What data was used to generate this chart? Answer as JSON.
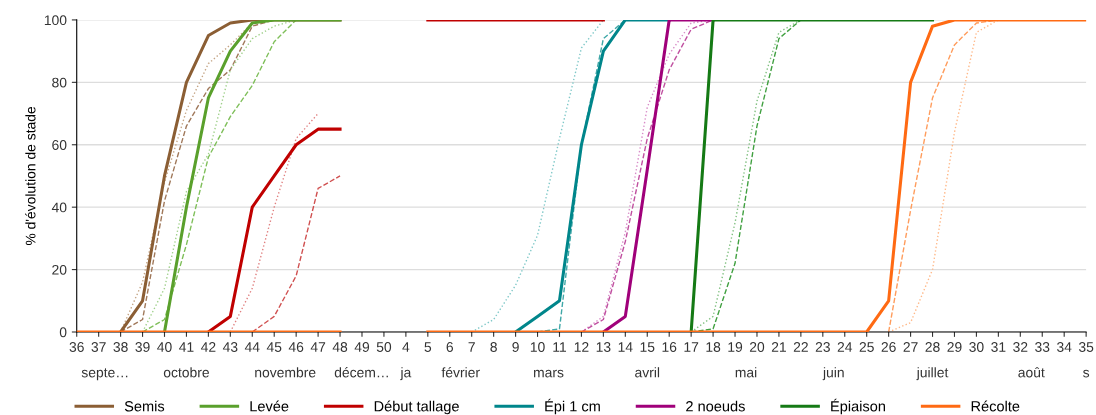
{
  "chart_data": {
    "type": "line",
    "ylabel": "% d'évolution de stade",
    "categories": [
      "36",
      "37",
      "38",
      "39",
      "40",
      "41",
      "42",
      "43",
      "44",
      "45",
      "46",
      "47",
      "48",
      "49",
      "50",
      "4",
      "5",
      "6",
      "7",
      "8",
      "9",
      "10",
      "11",
      "12",
      "13",
      "14",
      "15",
      "16",
      "17",
      "18",
      "19",
      "20",
      "21",
      "22",
      "23",
      "24",
      "25",
      "26",
      "27",
      "28",
      "29",
      "30",
      "31",
      "32",
      "33",
      "34",
      "35"
    ],
    "ylim": [
      0,
      100
    ],
    "yticks": [
      0,
      20,
      40,
      60,
      80,
      100
    ],
    "grid": "y",
    "legend": "bottom",
    "marker": "none",
    "annotations": [
      "septe…",
      "octobre",
      "novembre",
      "décem…",
      "ja",
      "février",
      "mars",
      "avril",
      "mai",
      "juin",
      "juillet",
      "août",
      "s"
    ],
    "series": [
      {
        "color": "#c4a484",
        "line_style": "dotted",
        "values": [
          null,
          null,
          0,
          16,
          48,
          71,
          86,
          92,
          99,
          100,
          null,
          null,
          null,
          null,
          null,
          null,
          null,
          null,
          null,
          null,
          null,
          null,
          null,
          null,
          null,
          null,
          null,
          null,
          null,
          null,
          null,
          null,
          null,
          null,
          null,
          null,
          null,
          null,
          null,
          null,
          null,
          null,
          null,
          null,
          null,
          null,
          null
        ]
      },
      {
        "color": "#a0785a",
        "line_style": "dashed",
        "values": [
          null,
          null,
          0,
          4,
          42,
          66,
          78,
          84,
          98,
          100,
          null,
          null,
          null,
          null,
          null,
          null,
          null,
          null,
          null,
          null,
          null,
          null,
          null,
          null,
          null,
          null,
          null,
          null,
          null,
          null,
          null,
          null,
          null,
          null,
          null,
          null,
          null,
          null,
          null,
          null,
          null,
          null,
          null,
          null,
          null,
          null,
          null
        ]
      },
      {
        "color": "#9fd08a",
        "line_style": "dotted",
        "values": [
          null,
          null,
          null,
          0,
          14,
          45,
          57,
          84,
          94,
          98,
          100,
          null,
          null,
          null,
          null,
          null,
          null,
          null,
          null,
          null,
          null,
          null,
          null,
          null,
          null,
          null,
          null,
          null,
          null,
          null,
          null,
          null,
          null,
          null,
          null,
          null,
          null,
          null,
          null,
          null,
          null,
          null,
          null,
          null,
          null,
          null,
          null
        ]
      },
      {
        "color": "#7fbf5a",
        "line_style": "dashed",
        "values": [
          null,
          null,
          null,
          0,
          4,
          28,
          56,
          69,
          79,
          93,
          100,
          null,
          null,
          null,
          null,
          null,
          null,
          null,
          null,
          null,
          null,
          null,
          null,
          null,
          null,
          null,
          null,
          null,
          null,
          null,
          null,
          null,
          null,
          null,
          null,
          null,
          null,
          null,
          null,
          null,
          null,
          null,
          null,
          null,
          null,
          null,
          null
        ]
      },
      {
        "color": "#e08080",
        "line_style": "dotted",
        "values": [
          null,
          null,
          null,
          null,
          null,
          null,
          null,
          0,
          14,
          40,
          62,
          70,
          null,
          null,
          null,
          null,
          null,
          null,
          null,
          null,
          null,
          null,
          null,
          null,
          null,
          null,
          null,
          null,
          null,
          null,
          null,
          null,
          null,
          null,
          null,
          null,
          null,
          null,
          null,
          null,
          null,
          null,
          null,
          null,
          null,
          null,
          null
        ]
      },
      {
        "color": "#d05050",
        "line_style": "dashed",
        "values": [
          null,
          null,
          null,
          null,
          null,
          null,
          null,
          null,
          0,
          5,
          18,
          46,
          50,
          null,
          null,
          null,
          null,
          null,
          null,
          null,
          null,
          null,
          null,
          null,
          null,
          null,
          null,
          null,
          null,
          null,
          null,
          null,
          null,
          null,
          null,
          null,
          null,
          null,
          null,
          null,
          null,
          null,
          null,
          null,
          null,
          null,
          null
        ]
      },
      {
        "color": "#7fc8c8",
        "line_style": "dotted",
        "values": [
          null,
          null,
          null,
          null,
          null,
          null,
          null,
          null,
          null,
          null,
          null,
          null,
          null,
          null,
          null,
          null,
          null,
          null,
          0,
          4,
          15,
          31,
          62,
          91,
          100,
          null,
          null,
          null,
          null,
          null,
          null,
          null,
          null,
          null,
          null,
          null,
          null,
          null,
          null,
          null,
          null,
          null,
          null,
          null,
          null,
          null,
          null
        ]
      },
      {
        "color": "#40a8a8",
        "line_style": "dashed",
        "values": [
          null,
          null,
          null,
          null,
          null,
          null,
          null,
          null,
          null,
          null,
          null,
          null,
          null,
          null,
          null,
          null,
          null,
          null,
          null,
          null,
          null,
          0,
          1,
          60,
          94,
          100,
          null,
          null,
          null,
          null,
          null,
          null,
          null,
          null,
          null,
          null,
          null,
          null,
          null,
          null,
          null,
          null,
          null,
          null,
          null,
          null,
          null
        ]
      },
      {
        "color": "#d88cc8",
        "line_style": "dotted",
        "values": [
          null,
          null,
          null,
          null,
          null,
          null,
          null,
          null,
          null,
          null,
          null,
          null,
          null,
          null,
          null,
          null,
          null,
          null,
          null,
          null,
          null,
          null,
          null,
          0,
          5,
          32,
          72,
          89,
          99,
          100,
          null,
          null,
          null,
          null,
          null,
          null,
          null,
          null,
          null,
          null,
          null,
          null,
          null,
          null,
          null,
          null,
          null
        ]
      },
      {
        "color": "#c050a0",
        "line_style": "dashed",
        "values": [
          null,
          null,
          null,
          null,
          null,
          null,
          null,
          null,
          null,
          null,
          null,
          null,
          null,
          null,
          null,
          null,
          null,
          null,
          null,
          null,
          null,
          null,
          null,
          0,
          4,
          29,
          62,
          84,
          97,
          100,
          null,
          null,
          null,
          null,
          null,
          null,
          null,
          null,
          null,
          null,
          null,
          null,
          null,
          null,
          null,
          null,
          null
        ]
      },
      {
        "color": "#80c080",
        "line_style": "dotted",
        "values": [
          null,
          null,
          null,
          null,
          null,
          null,
          null,
          null,
          null,
          null,
          null,
          null,
          null,
          null,
          null,
          null,
          null,
          null,
          null,
          null,
          null,
          null,
          null,
          null,
          null,
          null,
          null,
          null,
          0,
          5,
          35,
          74,
          96,
          100,
          null,
          null,
          null,
          null,
          null,
          null,
          null,
          null,
          null,
          null,
          null,
          null,
          null
        ]
      },
      {
        "color": "#40a040",
        "line_style": "dashed",
        "values": [
          null,
          null,
          null,
          null,
          null,
          null,
          null,
          null,
          null,
          null,
          null,
          null,
          null,
          null,
          null,
          null,
          null,
          null,
          null,
          null,
          null,
          null,
          null,
          null,
          null,
          null,
          null,
          null,
          0,
          1,
          22,
          66,
          94,
          100,
          null,
          null,
          null,
          null,
          null,
          null,
          null,
          null,
          null,
          null,
          null,
          null,
          null
        ]
      },
      {
        "color": "#ff9c5c",
        "line_style": "dashed",
        "values": [
          null,
          null,
          null,
          null,
          null,
          null,
          null,
          null,
          null,
          null,
          null,
          null,
          null,
          null,
          null,
          null,
          null,
          null,
          null,
          null,
          null,
          null,
          null,
          null,
          null,
          null,
          null,
          null,
          null,
          null,
          null,
          null,
          null,
          null,
          null,
          null,
          null,
          0,
          39,
          75,
          92,
          99,
          100,
          100,
          100,
          100,
          100
        ]
      },
      {
        "color": "#ffb888",
        "line_style": "dotted",
        "values": [
          null,
          null,
          null,
          null,
          null,
          null,
          null,
          null,
          null,
          null,
          null,
          null,
          null,
          null,
          null,
          null,
          null,
          null,
          null,
          null,
          null,
          null,
          null,
          null,
          null,
          null,
          null,
          null,
          null,
          null,
          null,
          null,
          null,
          null,
          null,
          null,
          null,
          0,
          3,
          20,
          64,
          96,
          100,
          null,
          null,
          null,
          null
        ]
      },
      {
        "name": "Semis",
        "color": "#8b5e34",
        "line_style": "solid",
        "values": [
          null,
          null,
          0,
          10,
          50,
          80,
          95,
          99,
          100,
          100,
          100,
          100,
          100,
          null,
          null,
          null,
          null,
          null,
          null,
          null,
          null,
          null,
          null,
          null,
          null,
          null,
          null,
          null,
          null,
          null,
          null,
          null,
          null,
          null,
          null,
          null,
          null,
          null,
          null,
          null,
          null,
          null,
          null,
          null,
          null,
          null,
          null
        ]
      },
      {
        "name": "Levée",
        "color": "#5aa02c",
        "line_style": "solid",
        "values": [
          null,
          null,
          null,
          null,
          0,
          40,
          75,
          90,
          99,
          100,
          100,
          100,
          100,
          null,
          null,
          null,
          null,
          null,
          null,
          null,
          null,
          null,
          null,
          null,
          null,
          null,
          null,
          null,
          null,
          null,
          null,
          null,
          null,
          null,
          null,
          null,
          null,
          null,
          null,
          null,
          null,
          null,
          null,
          null,
          null,
          null,
          null
        ]
      },
      {
        "name": "Début tallage",
        "color": "#c00000",
        "line_style": "solid",
        "values": [
          null,
          null,
          null,
          null,
          null,
          null,
          0,
          5,
          40,
          50,
          60,
          65,
          65,
          null,
          null,
          null,
          100,
          100,
          100,
          100,
          100,
          100,
          100,
          100,
          100,
          null,
          null,
          null,
          null,
          null,
          null,
          null,
          null,
          null,
          null,
          null,
          null,
          null,
          null,
          null,
          null,
          null,
          null,
          null,
          null,
          null,
          null
        ]
      },
      {
        "name": "Épi 1 cm",
        "color": "#00868b",
        "line_style": "solid",
        "values": [
          null,
          null,
          null,
          null,
          null,
          null,
          null,
          null,
          null,
          null,
          null,
          null,
          null,
          null,
          null,
          null,
          null,
          null,
          null,
          null,
          0,
          5,
          10,
          60,
          90,
          100,
          100,
          100,
          null,
          null,
          null,
          null,
          null,
          null,
          null,
          null,
          null,
          null,
          null,
          null,
          null,
          null,
          null,
          null,
          null,
          null,
          null
        ]
      },
      {
        "name": "2 noeuds",
        "color": "#a0007a",
        "line_style": "solid",
        "values": [
          null,
          null,
          null,
          null,
          null,
          null,
          null,
          null,
          null,
          null,
          null,
          null,
          null,
          null,
          null,
          null,
          null,
          null,
          null,
          null,
          null,
          null,
          null,
          null,
          0,
          5,
          52,
          100,
          100,
          100,
          null,
          null,
          null,
          null,
          null,
          null,
          null,
          null,
          null,
          null,
          null,
          null,
          null,
          null,
          null,
          null,
          null
        ]
      },
      {
        "name": "Épiaison",
        "color": "#157a15",
        "line_style": "solid",
        "values": [
          null,
          null,
          null,
          null,
          null,
          null,
          null,
          null,
          null,
          null,
          null,
          null,
          null,
          null,
          null,
          null,
          null,
          null,
          null,
          null,
          null,
          null,
          null,
          null,
          null,
          null,
          null,
          null,
          0,
          100,
          100,
          100,
          100,
          100,
          100,
          100,
          100,
          100,
          100,
          100,
          null,
          null,
          null,
          null,
          null,
          null,
          null
        ]
      },
      {
        "name": "Récolte",
        "color": "#ff6a13",
        "line_style": "solid",
        "values": [
          0,
          0,
          0,
          0,
          0,
          0,
          0,
          0,
          0,
          0,
          0,
          0,
          0,
          null,
          null,
          null,
          0,
          0,
          0,
          0,
          0,
          0,
          0,
          0,
          0,
          0,
          0,
          0,
          0,
          0,
          0,
          0,
          0,
          0,
          0,
          0,
          0,
          10,
          80,
          98,
          100,
          100,
          100,
          100,
          100,
          100,
          100
        ]
      }
    ]
  }
}
